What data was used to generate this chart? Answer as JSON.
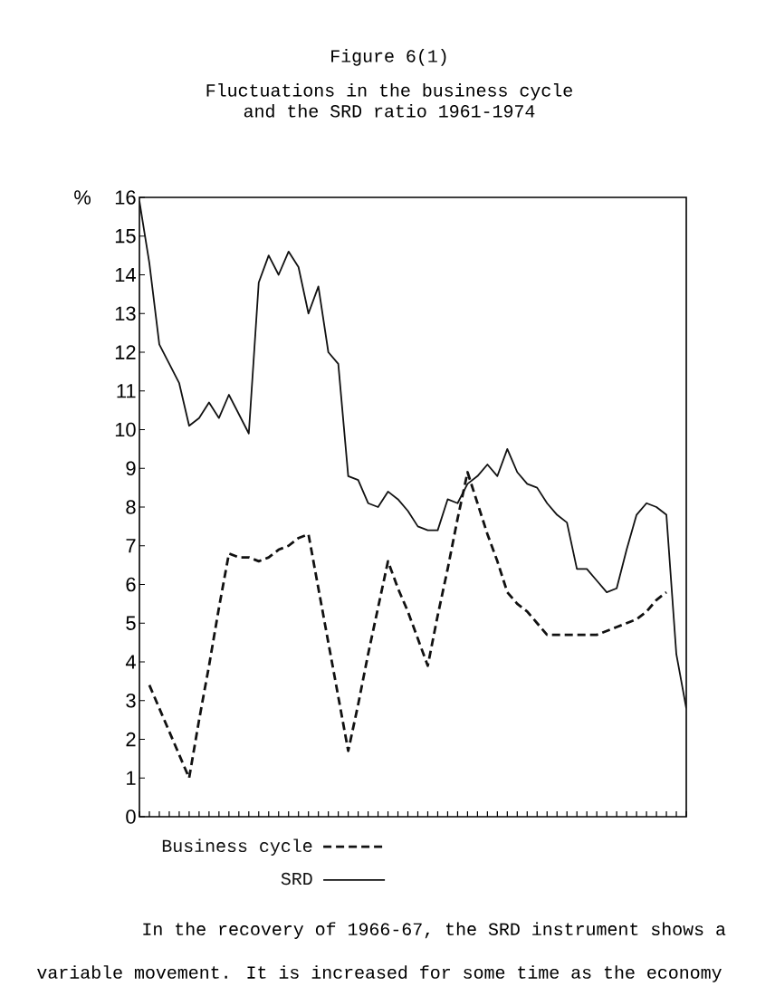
{
  "chart_data": {
    "type": "line",
    "title": "Figure 6(1)",
    "subtitle": "Fluctuations in the business cycle and the SRD ratio 1961-1974",
    "ylabel": "%",
    "categories": [
      null,
      null,
      null,
      null,
      null,
      null,
      null,
      null,
      null,
      null,
      null,
      null,
      null,
      null,
      null,
      null,
      null,
      null,
      null,
      null,
      null,
      null,
      null,
      null,
      null,
      null,
      null,
      null,
      null,
      null,
      null,
      null,
      null,
      null,
      null,
      null,
      null,
      null,
      null,
      null,
      null,
      null,
      null,
      null,
      null,
      null,
      null,
      null,
      null,
      null,
      null,
      null,
      null,
      null,
      null,
      null
    ],
    "series": [
      {
        "name": "Business cycle",
        "color": "#111111",
        "line_style": "dashed",
        "values": [
          null,
          3.4,
          2.8,
          2.2,
          1.6,
          1.0,
          2.5,
          3.9,
          5.4,
          6.8,
          6.7,
          6.7,
          6.6,
          6.7,
          6.9,
          7.0,
          7.2,
          7.3,
          5.9,
          4.5,
          3.1,
          1.7,
          2.9,
          4.2,
          5.4,
          6.6,
          5.9,
          5.3,
          4.6,
          3.9,
          5.2,
          6.4,
          7.7,
          8.9,
          8.1,
          7.3,
          6.6,
          5.8,
          5.5,
          5.3,
          5.0,
          4.7,
          4.7,
          4.7,
          4.7,
          4.7,
          4.7,
          4.8,
          4.9,
          5.0,
          5.1,
          5.3,
          5.6,
          5.8,
          null,
          null
        ]
      },
      {
        "name": "SRD",
        "color": "#111111",
        "line_style": "solid",
        "values": [
          15.9,
          14.3,
          12.2,
          11.7,
          11.2,
          10.1,
          10.3,
          10.7,
          10.3,
          10.9,
          10.4,
          9.9,
          13.8,
          14.5,
          14.0,
          14.6,
          14.2,
          13.0,
          13.7,
          12.0,
          11.7,
          8.8,
          8.7,
          8.1,
          8.0,
          8.4,
          8.2,
          7.9,
          7.5,
          7.4,
          7.4,
          8.2,
          8.1,
          8.6,
          8.8,
          9.1,
          8.8,
          9.5,
          8.9,
          8.6,
          8.5,
          8.1,
          7.8,
          7.6,
          6.4,
          6.4,
          6.1,
          5.8,
          5.9,
          6.9,
          7.8,
          8.1,
          8.0,
          7.8,
          4.2,
          2.8
        ]
      }
    ],
    "ylim": [
      0,
      16
    ],
    "yticks": [
      0,
      1,
      2,
      3,
      4,
      5,
      6,
      7,
      8,
      9,
      10,
      11,
      12,
      13,
      14,
      15,
      16
    ],
    "tick_labels": "y",
    "legend": "bottom",
    "marker": "none",
    "annotations": [
      "In the recovery of 1966-67, the SRD instrument shows a variable movement. It is increased for some time as the economy"
    ]
  }
}
